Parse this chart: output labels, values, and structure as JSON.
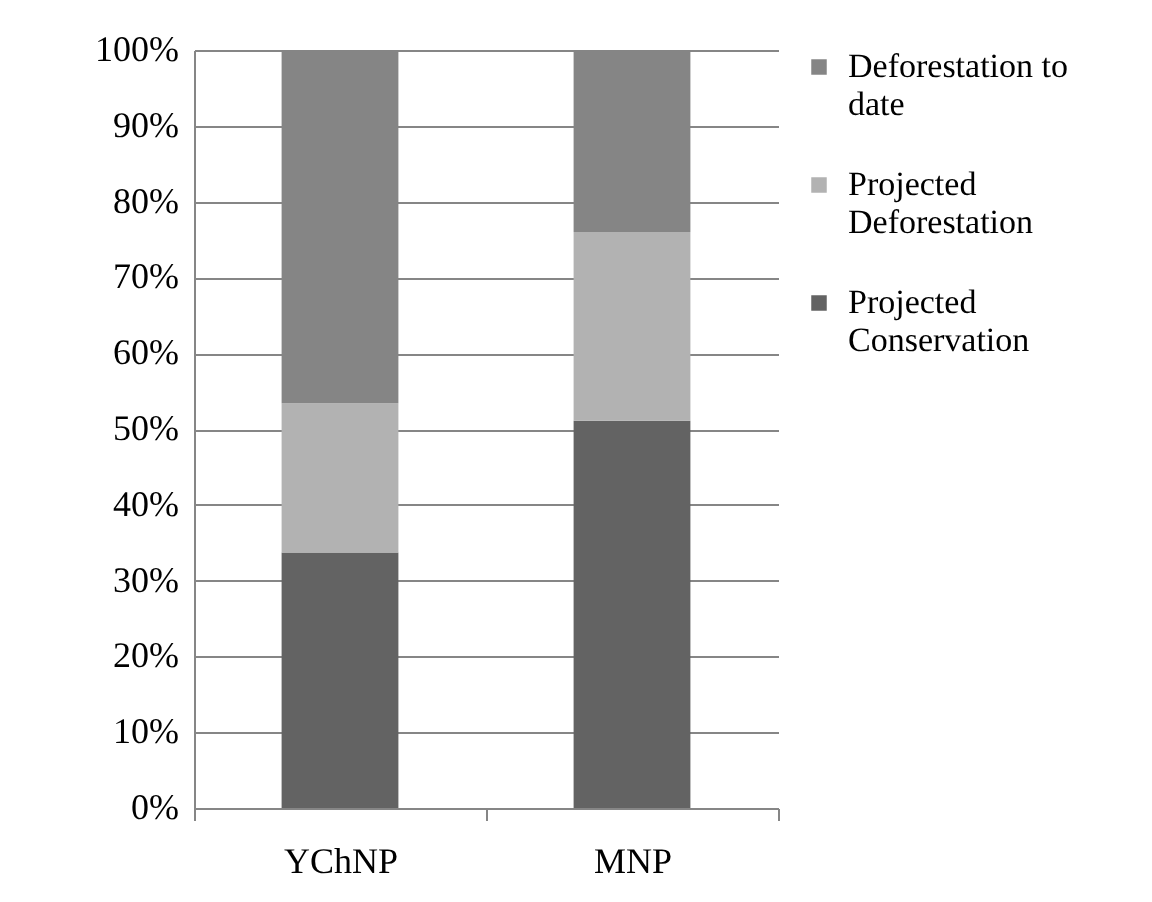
{
  "chart_data": {
    "type": "bar",
    "stacked": true,
    "categories": [
      "YChNP",
      "MNP"
    ],
    "series": [
      {
        "name": "Projected Conservation",
        "color": "#636363",
        "values": [
          33.7,
          51.1
        ]
      },
      {
        "name": "Projected Deforestation",
        "color": "#b2b2b2",
        "values": [
          19.7,
          24.9
        ]
      },
      {
        "name": "Deforestation to date",
        "color": "#858585",
        "values": [
          46.6,
          24.0
        ]
      }
    ],
    "ylim": [
      0,
      100
    ],
    "yticks": [
      {
        "value": 0,
        "label": "0%"
      },
      {
        "value": 10,
        "label": "10%"
      },
      {
        "value": 20,
        "label": "20%"
      },
      {
        "value": 30,
        "label": "30%"
      },
      {
        "value": 40,
        "label": "40%"
      },
      {
        "value": 50,
        "label": "50%"
      },
      {
        "value": 60,
        "label": "60%"
      },
      {
        "value": 70,
        "label": "70%"
      },
      {
        "value": 80,
        "label": "80%"
      },
      {
        "value": 90,
        "label": "90%"
      },
      {
        "value": 100,
        "label": "100%"
      }
    ],
    "grid": "y",
    "legend": "right"
  }
}
